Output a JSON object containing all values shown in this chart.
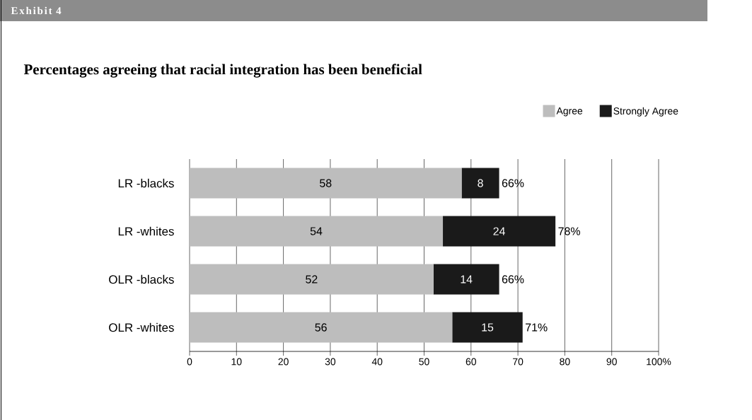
{
  "chart_data": {
    "type": "bar",
    "orientation": "horizontal",
    "stacked": true,
    "title": "Percentages agreeing that racial integration has been beneficial",
    "annotations": [
      "Exhibit 4"
    ],
    "categories": [
      "LR -blacks",
      "LR -whites",
      "OLR -blacks",
      "OLR -whites"
    ],
    "series": [
      {
        "name": "Agree",
        "color": "#bdbdbd",
        "values": [
          58,
          54,
          52,
          56
        ]
      },
      {
        "name": "Strongly Agree",
        "color": "#1a1a1a",
        "values": [
          8,
          24,
          14,
          15
        ]
      }
    ],
    "totals": [
      "66%",
      "78%",
      "66%",
      "71%"
    ],
    "data_labels": true,
    "xlim": [
      0,
      100
    ],
    "xticks": [
      0,
      10,
      20,
      30,
      40,
      50,
      60,
      70,
      80,
      90,
      {
        "value": 100,
        "label": "100%"
      }
    ],
    "grid": "x",
    "legend": "top right"
  }
}
